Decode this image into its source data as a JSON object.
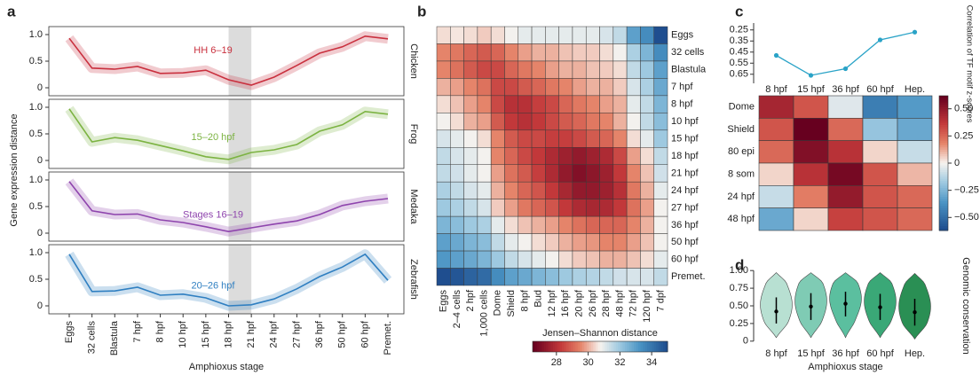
{
  "chart_data": [
    {
      "type": "line",
      "panel_label": "a",
      "y_label": "Gene expression distance",
      "label": "Chicken",
      "annotation": "HH 6–19",
      "color": "#c9303e",
      "values": [
        0.93,
        0.37,
        0.35,
        0.4,
        0.27,
        0.28,
        0.33,
        0.15,
        0.05,
        0.2,
        0.42,
        0.65,
        0.77,
        0.97,
        0.92
      ],
      "ylim": [
        -0.15,
        1.15
      ],
      "yticks": [
        0,
        0.5,
        {
          "value": 1,
          "label": "1.0"
        }
      ],
      "highlight": [
        7,
        8
      ]
    },
    {
      "type": "line",
      "label": "Frog",
      "annotation": "15–20 hpf",
      "color": "#7cb342",
      "values": [
        0.97,
        0.35,
        0.43,
        0.38,
        0.28,
        0.18,
        0.07,
        0.02,
        0.15,
        0.2,
        0.3,
        0.55,
        0.67,
        0.92,
        0.87
      ],
      "ylim": [
        -0.15,
        1.15
      ],
      "yticks": [
        0,
        0.5,
        {
          "value": 1,
          "label": "1.0"
        }
      ],
      "highlight": [
        7,
        8
      ]
    },
    {
      "type": "line",
      "label": "Medaka",
      "annotation": "Stages 16–19",
      "color": "#8e44ad",
      "values": [
        0.97,
        0.42,
        0.35,
        0.36,
        0.25,
        0.2,
        0.12,
        0.03,
        0.1,
        0.17,
        0.23,
        0.35,
        0.52,
        0.6,
        0.65
      ],
      "ylim": [
        -0.15,
        1.15
      ],
      "yticks": [
        0,
        0.5,
        {
          "value": 1,
          "label": "1.0"
        }
      ],
      "highlight": [
        7,
        8
      ]
    },
    {
      "type": "line",
      "label": "Zebrafish",
      "annotation": "20–26 hpf",
      "color": "#2f7fc1",
      "x_label": "Amphioxus stage",
      "categories": [
        "Eggs",
        "32 cells",
        "Blastula",
        "7 hpf",
        "8 hpf",
        "10 hpf",
        "15 hpf",
        "18 hpf",
        "21 hpf",
        "24 hpf",
        "27 hpf",
        "36 hpf",
        "50 hpf",
        "60 hpf",
        "Premet."
      ],
      "values": [
        0.97,
        0.27,
        0.28,
        0.35,
        0.2,
        0.22,
        0.15,
        0.0,
        0.02,
        0.13,
        0.32,
        0.55,
        0.73,
        0.97,
        0.48
      ],
      "ylim": [
        -0.15,
        1.15
      ],
      "yticks": [
        0,
        0.5,
        {
          "value": 1,
          "label": "1.0"
        }
      ],
      "highlight": [
        7,
        8
      ]
    },
    {
      "type": "heatmap",
      "panel_label": "b",
      "colorbar_label": "Jensen–Shannon distance",
      "rows": [
        "Eggs",
        "32 cells",
        "Blastula",
        "7 hpf",
        "8 hpf",
        "10 hpf",
        "15 hpf",
        "18 hpf",
        "21 hpf",
        "24 hpf",
        "27 hpf",
        "36 hpf",
        "50 hpf",
        "60 hpf",
        "Premet."
      ],
      "columns": [
        "Eggs",
        "2–4 cells",
        "2 hpf",
        "1,000 cells",
        "Dome",
        "Shield",
        "8 hpf",
        "Bud",
        "12 hpf",
        "16 hpf",
        "20 hpf",
        "26 hpf",
        "28 hpf",
        "48 hpf",
        "72 hpf",
        "120 hpf",
        "7 dpf"
      ],
      "values": [
        [
          30.5,
          30.6,
          30.5,
          30.3,
          30.5,
          30.8,
          31,
          31,
          31,
          31,
          31,
          31,
          31.2,
          31.5,
          33,
          33.5,
          35
        ],
        [
          29.5,
          29.3,
          29,
          28.8,
          29,
          29.5,
          29.8,
          30,
          30,
          30.2,
          30.3,
          30.3,
          30.5,
          30.8,
          31.8,
          32.5,
          33.5
        ],
        [
          29.5,
          29.2,
          28.8,
          28.5,
          28.5,
          29,
          29.3,
          29.5,
          29.8,
          30,
          30,
          30.2,
          30.3,
          30.5,
          31.5,
          32,
          33
        ],
        [
          30,
          29.8,
          29.5,
          29.2,
          28.5,
          28.5,
          28.8,
          29,
          29.3,
          29.5,
          29.8,
          30,
          30,
          30.3,
          31.2,
          31.8,
          32.8
        ],
        [
          30.5,
          30.2,
          29.8,
          29.5,
          28.5,
          28,
          28,
          28.3,
          28.5,
          29,
          29.3,
          29.5,
          29.8,
          30,
          31,
          31.5,
          32.5
        ],
        [
          30.8,
          30.5,
          30,
          29.8,
          28.8,
          28.2,
          28,
          28.2,
          28.5,
          28.8,
          29,
          29.3,
          29.5,
          30,
          30.8,
          31.5,
          32.3
        ],
        [
          31.2,
          31,
          30.8,
          30.5,
          29.5,
          28.8,
          28.5,
          28.5,
          28.3,
          28.3,
          28.5,
          28.8,
          29,
          29.5,
          30.5,
          31,
          32
        ],
        [
          31.5,
          31.2,
          31,
          30.8,
          29.5,
          29,
          28.5,
          28.2,
          27.8,
          27.5,
          27.3,
          27.5,
          27.8,
          28.5,
          29.8,
          30.5,
          31.5
        ],
        [
          31.5,
          31.3,
          31,
          30.8,
          29.8,
          29.2,
          28.8,
          28.3,
          27.8,
          27.3,
          27,
          27.2,
          27.5,
          28.2,
          29.5,
          30.2,
          31.3
        ],
        [
          31.8,
          31.5,
          31.2,
          31,
          30,
          29.5,
          29,
          28.7,
          28.2,
          27.7,
          27.3,
          27.3,
          27.5,
          28,
          29.3,
          30,
          31
        ],
        [
          32,
          31.8,
          31.5,
          31.2,
          30.3,
          29.8,
          29.3,
          29,
          28.7,
          28.2,
          27.8,
          27.7,
          27.8,
          28.2,
          29.2,
          29.8,
          30.8
        ],
        [
          32.5,
          32.3,
          32,
          31.8,
          31,
          30.5,
          30.2,
          30,
          29.8,
          29.5,
          29.2,
          29,
          29,
          29,
          29.5,
          30,
          30.8
        ],
        [
          33,
          32.8,
          32.5,
          32.3,
          31.5,
          31,
          30.8,
          30.5,
          30.3,
          30,
          29.8,
          29.7,
          29.5,
          29.5,
          29.8,
          30.2,
          30.8
        ],
        [
          33.2,
          33,
          32.8,
          32.5,
          32,
          31.5,
          31.2,
          31,
          30.8,
          30.5,
          30.3,
          30.2,
          30,
          30,
          30.2,
          30.5,
          31
        ],
        [
          35,
          34.8,
          34.5,
          34.3,
          33.5,
          33,
          32.8,
          32.5,
          32.3,
          32,
          31.8,
          31.7,
          31.5,
          31.3,
          31.2,
          31.2,
          31.5
        ]
      ],
      "clim": [
        26.5,
        35
      ],
      "cticks": [
        28,
        30,
        32,
        34
      ],
      "reverse_colormap": true
    },
    {
      "type": "line",
      "panel_label": "c",
      "y_label": "Correlation of TF motif z-scores",
      "color": "#2aa3c7",
      "categories": [
        "8 hpf",
        "15 hpf",
        "36 hpf",
        "60 hpf",
        "Hep."
      ],
      "values": [
        0.48,
        0.66,
        0.6,
        0.34,
        0.27
      ],
      "ylim": [
        0.7,
        0.22
      ],
      "yticks": [
        0.25,
        0.35,
        0.45,
        0.55,
        0.65
      ],
      "markers": true
    },
    {
      "type": "heatmap",
      "rows": [
        "Dome",
        "Shield",
        "80 epi",
        "8 som",
        "24 hpf",
        "48 hpf"
      ],
      "values": [
        [
          0.45,
          0.3,
          -0.05,
          -0.45,
          -0.35
        ],
        [
          0.3,
          0.62,
          0.25,
          -0.2,
          -0.3
        ],
        [
          0.25,
          0.55,
          0.4,
          0.05,
          -0.1
        ],
        [
          0.05,
          0.4,
          0.58,
          0.3,
          0.1
        ],
        [
          -0.1,
          0.2,
          0.5,
          0.3,
          0.25
        ],
        [
          -0.3,
          0.05,
          0.35,
          0.3,
          0.25
        ]
      ],
      "clim": [
        -0.62,
        0.62
      ],
      "cticks": [
        {
          "value": 0.5,
          "label": "0.50"
        },
        0.25,
        0,
        {
          "value": -0.25,
          "label": "−0.25"
        },
        {
          "value": -0.5,
          "label": "−0.50"
        }
      ],
      "reverse_colormap": false
    },
    {
      "type": "violin",
      "panel_label": "d",
      "y_label": "Genomic conservation",
      "x_label": "Amphioxus stage",
      "categories": [
        "8 hpf",
        "15 hpf",
        "36 hpf",
        "60 hpf",
        "Hep."
      ],
      "values": [
        0.42,
        0.49,
        0.53,
        0.48,
        0.41
      ],
      "q1": [
        0.25,
        0.3,
        0.35,
        0.3,
        0.22
      ],
      "q3": [
        0.62,
        0.68,
        0.7,
        0.67,
        0.6
      ],
      "min": [
        0.05,
        0.05,
        0.05,
        0.05,
        0.03
      ],
      "max": [
        0.97,
        0.97,
        0.97,
        0.97,
        0.96
      ],
      "colors": [
        "#b8e0d2",
        "#7fcbb4",
        "#5bbf9f",
        "#3aa877",
        "#2a8f54"
      ],
      "ylim": [
        -0.04,
        1.04
      ],
      "yticks": [
        0,
        0.25,
        {
          "value": 0.5,
          "label": "0.50"
        },
        0.75,
        {
          "value": 1,
          "label": "1.00"
        }
      ]
    }
  ]
}
